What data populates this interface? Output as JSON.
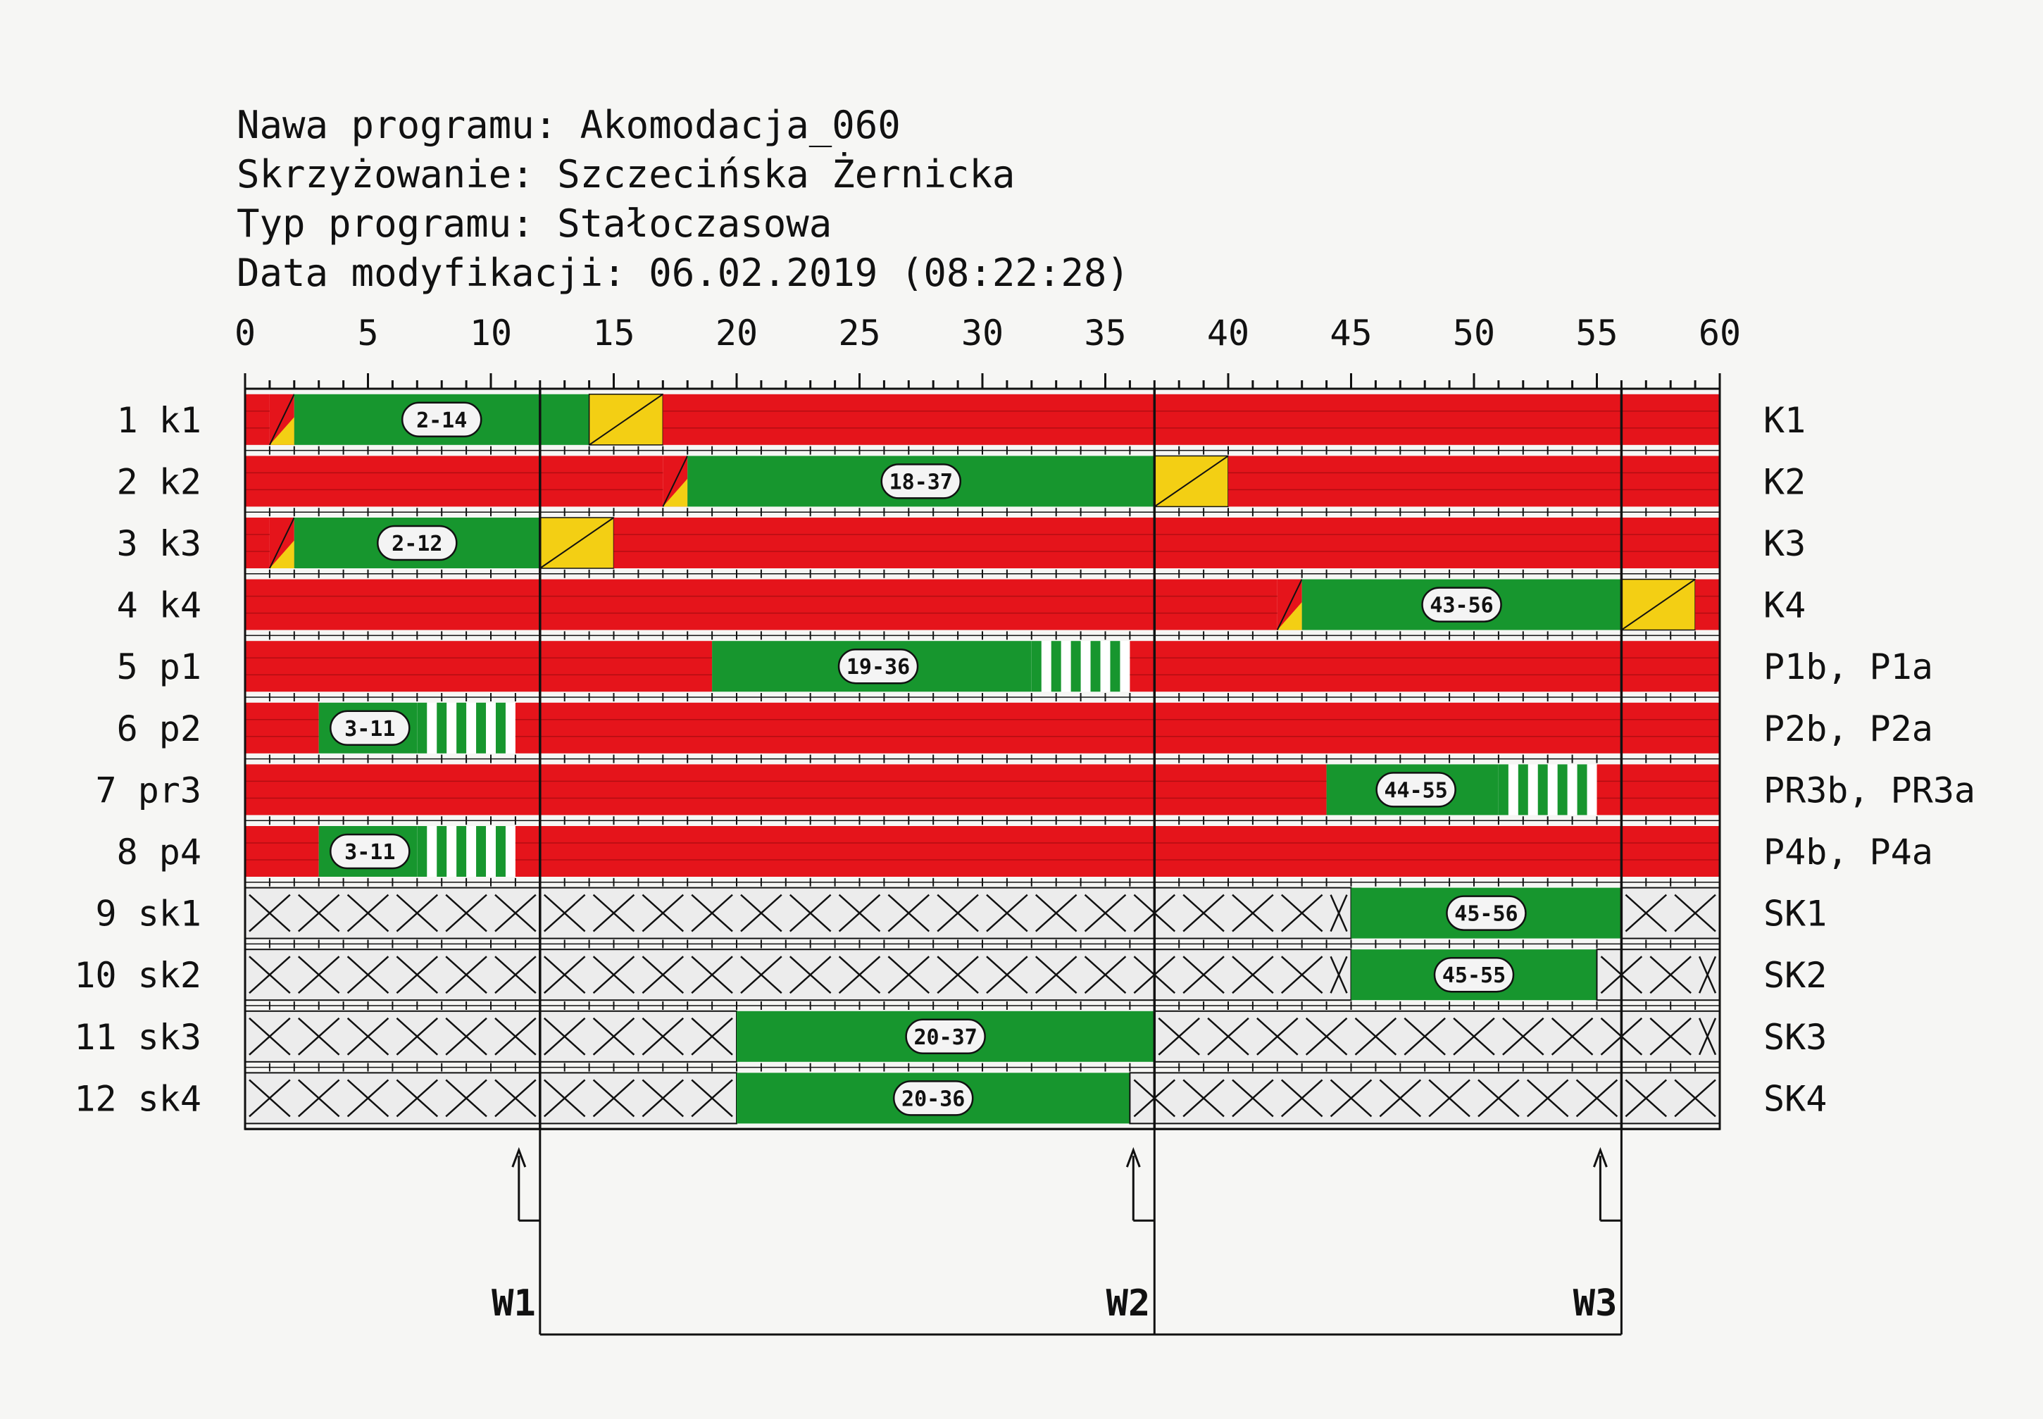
{
  "header": {
    "line1": "Nawa programu: Akomodacja_060",
    "line2": "Skrzyżowanie: Szczecińska Żernicka",
    "line3": "Typ programu: Stałoczasowa",
    "line4": "Data modyfikacji: 06.02.2019 (08:22:28)"
  },
  "colors": {
    "red": "#e5141b",
    "green": "#17962e",
    "yellow": "#f3cf14",
    "white": "#ffffff",
    "inactive": "#ececec",
    "line": "#111111"
  },
  "chart_data": {
    "type": "gantt",
    "cycle_length": 60,
    "xlim": [
      0,
      60
    ],
    "ticks": [
      "0",
      "5",
      "10",
      "15",
      "20",
      "25",
      "30",
      "35",
      "40",
      "45",
      "50",
      "55",
      "60"
    ],
    "rows": [
      {
        "left": "1  k1",
        "right": "K1",
        "kind": "vehicle",
        "label": "2-14",
        "segments": [
          {
            "s": 0,
            "e": 1,
            "c": "red"
          },
          {
            "s": 1,
            "e": 2,
            "c": "redamber"
          },
          {
            "s": 2,
            "e": 14,
            "c": "green"
          },
          {
            "s": 14,
            "e": 17,
            "c": "yellow"
          },
          {
            "s": 17,
            "e": 60,
            "c": "red"
          }
        ]
      },
      {
        "left": "2  k2",
        "right": "K2",
        "kind": "vehicle",
        "label": "18-37",
        "segments": [
          {
            "s": 0,
            "e": 17,
            "c": "red"
          },
          {
            "s": 17,
            "e": 18,
            "c": "redamber"
          },
          {
            "s": 18,
            "e": 37,
            "c": "green"
          },
          {
            "s": 37,
            "e": 40,
            "c": "yellow"
          },
          {
            "s": 40,
            "e": 60,
            "c": "red"
          }
        ]
      },
      {
        "left": "3  k3",
        "right": "K3",
        "kind": "vehicle",
        "label": "2-12",
        "segments": [
          {
            "s": 0,
            "e": 1,
            "c": "red"
          },
          {
            "s": 1,
            "e": 2,
            "c": "redamber"
          },
          {
            "s": 2,
            "e": 12,
            "c": "green"
          },
          {
            "s": 12,
            "e": 15,
            "c": "yellow"
          },
          {
            "s": 15,
            "e": 60,
            "c": "red"
          }
        ]
      },
      {
        "left": "4  k4",
        "right": "K4",
        "kind": "vehicle",
        "label": "43-56",
        "segments": [
          {
            "s": 0,
            "e": 42,
            "c": "red"
          },
          {
            "s": 42,
            "e": 43,
            "c": "redamber"
          },
          {
            "s": 43,
            "e": 56,
            "c": "green"
          },
          {
            "s": 56,
            "e": 59,
            "c": "yellow"
          },
          {
            "s": 59,
            "e": 60,
            "c": "red"
          }
        ]
      },
      {
        "left": "5  p1",
        "right": "P1b, P1a",
        "kind": "pedestrian",
        "label": "19-36",
        "segments": [
          {
            "s": 0,
            "e": 19,
            "c": "red"
          },
          {
            "s": 19,
            "e": 32,
            "c": "green"
          },
          {
            "s": 32,
            "e": 36,
            "c": "flash"
          },
          {
            "s": 36,
            "e": 60,
            "c": "red"
          }
        ]
      },
      {
        "left": "6  p2",
        "right": "P2b, P2a",
        "kind": "pedestrian",
        "label": "3-11",
        "segments": [
          {
            "s": 0,
            "e": 3,
            "c": "red"
          },
          {
            "s": 3,
            "e": 7,
            "c": "green"
          },
          {
            "s": 7,
            "e": 11,
            "c": "flash"
          },
          {
            "s": 11,
            "e": 60,
            "c": "red"
          }
        ]
      },
      {
        "left": "7  pr3",
        "right": "PR3b, PR3a",
        "kind": "pedestrian",
        "label": "44-55",
        "segments": [
          {
            "s": 0,
            "e": 44,
            "c": "red"
          },
          {
            "s": 44,
            "e": 51,
            "c": "green"
          },
          {
            "s": 51,
            "e": 55,
            "c": "flash"
          },
          {
            "s": 55,
            "e": 60,
            "c": "red"
          }
        ]
      },
      {
        "left": "8  p4",
        "right": "P4b, P4a",
        "kind": "pedestrian",
        "label": "3-11",
        "segments": [
          {
            "s": 0,
            "e": 3,
            "c": "red"
          },
          {
            "s": 3,
            "e": 7,
            "c": "green"
          },
          {
            "s": 7,
            "e": 11,
            "c": "flash"
          },
          {
            "s": 11,
            "e": 60,
            "c": "red"
          }
        ]
      },
      {
        "left": "9  sk1",
        "right": "SK1",
        "kind": "conditional",
        "label": "45-56",
        "segments": [
          {
            "s": 0,
            "e": 45,
            "c": "cross"
          },
          {
            "s": 45,
            "e": 56,
            "c": "green"
          },
          {
            "s": 56,
            "e": 60,
            "c": "cross"
          }
        ]
      },
      {
        "left": "10  sk2",
        "right": "SK2",
        "kind": "conditional",
        "label": "45-55",
        "segments": [
          {
            "s": 0,
            "e": 45,
            "c": "cross"
          },
          {
            "s": 45,
            "e": 55,
            "c": "green"
          },
          {
            "s": 55,
            "e": 60,
            "c": "cross"
          }
        ]
      },
      {
        "left": "11  sk3",
        "right": "SK3",
        "kind": "conditional",
        "label": "20-37",
        "segments": [
          {
            "s": 0,
            "e": 20,
            "c": "cross"
          },
          {
            "s": 20,
            "e": 37,
            "c": "green"
          },
          {
            "s": 37,
            "e": 60,
            "c": "cross"
          }
        ]
      },
      {
        "left": "12  sk4",
        "right": "SK4",
        "kind": "conditional",
        "label": "20-36",
        "segments": [
          {
            "s": 0,
            "e": 20,
            "c": "cross"
          },
          {
            "s": 20,
            "e": 36,
            "c": "green"
          },
          {
            "s": 36,
            "e": 60,
            "c": "cross"
          }
        ]
      }
    ],
    "phase_markers": [
      {
        "name": "W1",
        "t": 12
      },
      {
        "name": "W2",
        "t": 37
      },
      {
        "name": "W3",
        "t": 56
      }
    ]
  }
}
